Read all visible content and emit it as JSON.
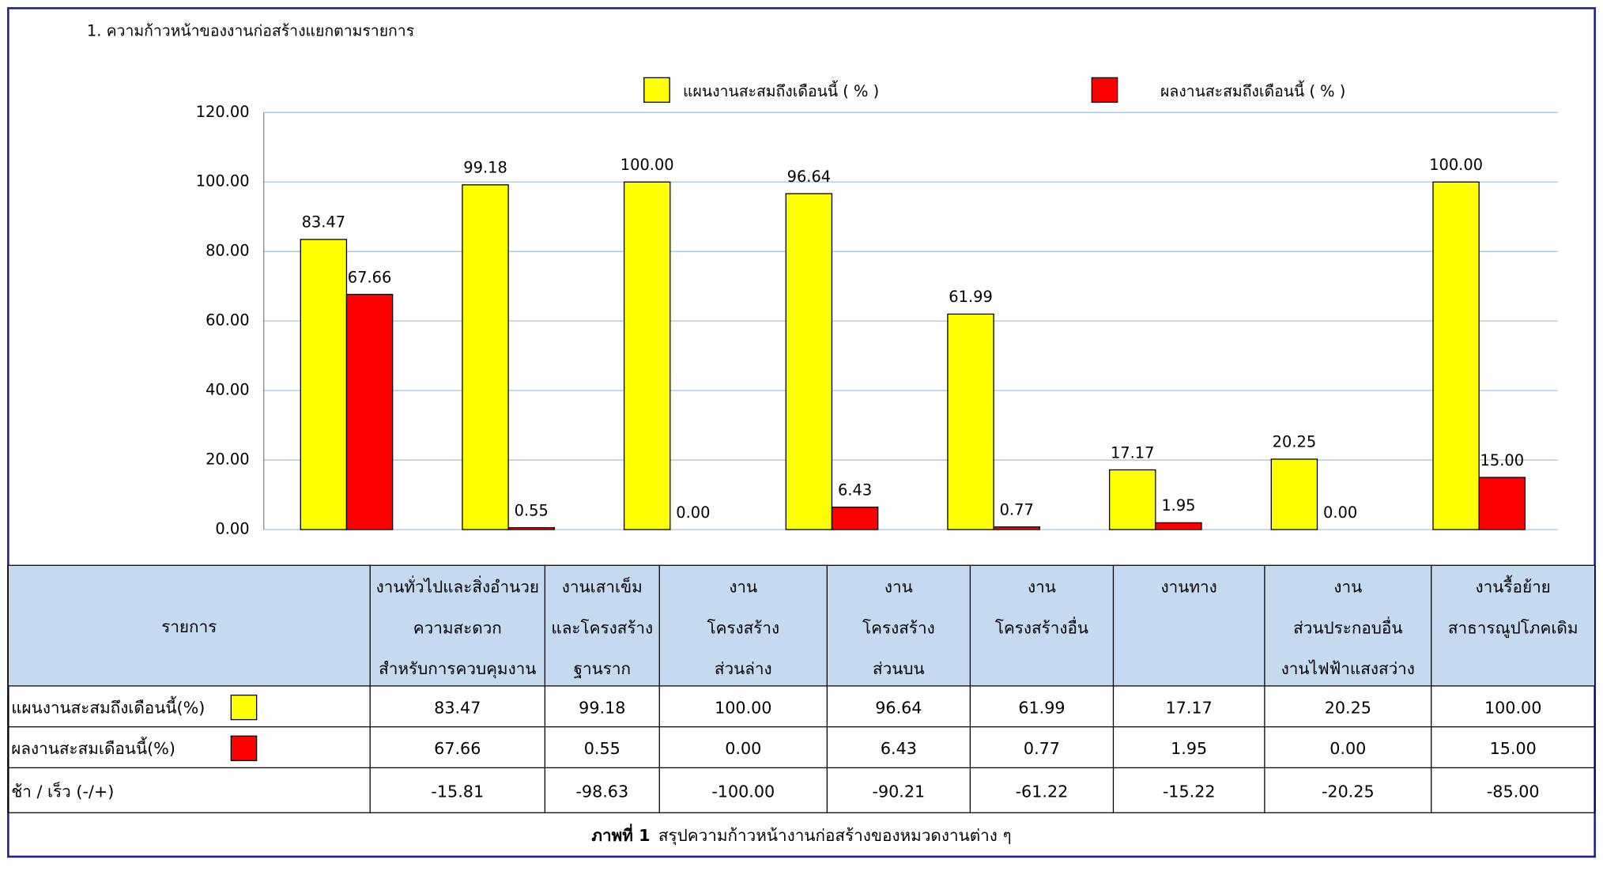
{
  "chart_data": {
    "type": "bar",
    "title": "1. ความก้าวหน้าของงานก่อสร้างแยกตามรายการ",
    "series": [
      {
        "name": "แผนงานสะสมถึงเดือนนี้ ( % )",
        "color": "#ffff00",
        "values": [
          83.47,
          99.18,
          100,
          96.64,
          61.99,
          17.17,
          20.25,
          100
        ],
        "value_labels": [
          "83.47",
          "99.18",
          "100.00",
          "96.64",
          "61.99",
          "17.17",
          "20.25",
          "100.00"
        ]
      },
      {
        "name": "ผลงานสะสมถึงเดือนนี้ ( % )",
        "color": "#ff0000",
        "values": [
          67.66,
          0.55,
          0,
          6.43,
          0.77,
          1.95,
          0,
          15
        ],
        "value_labels": [
          "67.66",
          "0.55",
          "0.00",
          "6.43",
          "0.77",
          "1.95",
          "0.00",
          "15.00"
        ]
      }
    ],
    "ylim": [
      0,
      120
    ],
    "yticks": [
      {
        "value": 0,
        "label": "0.00"
      },
      {
        "value": 20,
        "label": "20.00"
      },
      {
        "value": 40,
        "label": "40.00"
      },
      {
        "value": 60,
        "label": "60.00"
      },
      {
        "value": 80,
        "label": "80.00"
      },
      {
        "value": 100,
        "label": "100.00"
      },
      {
        "value": 120,
        "label": "120.00"
      }
    ],
    "grid": true
  },
  "table": {
    "header": [
      [
        "รายการ"
      ],
      [
        "งานทั่วไปและสิ่งอำนวย",
        "ความสะดวก",
        "สำหรับการควบคุมงาน"
      ],
      [
        "งานเสาเข็ม",
        "และโครงสร้าง",
        "ฐานราก"
      ],
      [
        "งาน",
        "โครงสร้าง",
        "ส่วนล่าง"
      ],
      [
        "งาน",
        "โครงสร้าง",
        "ส่วนบน"
      ],
      [
        "งาน",
        "โครงสร้างอื่น"
      ],
      [
        "งานทาง"
      ],
      [
        "งาน",
        "ส่วนประกอบอื่น",
        "งานไฟฟ้าแสงสว่าง"
      ],
      [
        "งานรื้อย้าย",
        "สาธารณูปโภคเดิม"
      ]
    ],
    "rows": [
      {
        "label": "แผนงานสะสมถึงเดือนนี้(%)",
        "color": "#ffff00",
        "cells": [
          "83.47",
          "99.18",
          "100.00",
          "96.64",
          "61.99",
          "17.17",
          "20.25",
          "100.00"
        ]
      },
      {
        "label": "ผลงานสะสมเดือนนี้(%)",
        "color": "#ff0000",
        "cells": [
          "67.66",
          "0.55",
          "0.00",
          "6.43",
          "0.77",
          "1.95",
          "0.00",
          "15.00"
        ]
      },
      {
        "label": "ช้า / เร็ว  (-/+)",
        "cells": [
          "-15.81",
          "-98.63",
          "-100.00",
          "-90.21",
          "-61.22",
          "-15.22",
          "-20.25",
          "-85.00"
        ]
      }
    ],
    "caption_bold": "ภาพที่ 1",
    "caption": "สรุปความก้าวหน้างานก่อสร้างของหมวดงานต่าง ๆ"
  }
}
